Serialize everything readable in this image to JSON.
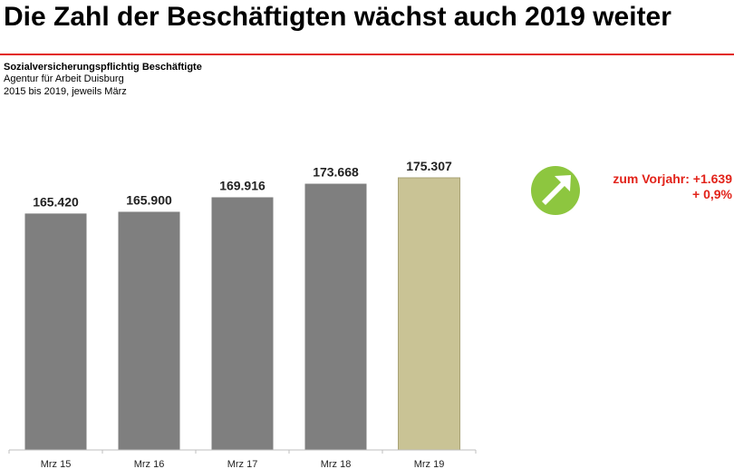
{
  "header": {
    "title": "Die Zahl der Beschäftigten wächst auch 2019 weiter",
    "subtitle": "Sozialversicherungspflichtig Beschäftigte",
    "source": "Agentur für Arbeit Duisburg",
    "period": "2015 bis 2019, jeweils März"
  },
  "annotation": {
    "line1": "zum Vorjahr: +1.639",
    "line2": "+ 0,9%",
    "icon": "arrow-up-right-icon",
    "icon_color": "#8dc63f",
    "text_color": "#e2231a"
  },
  "colors": {
    "bar": "#7f7f7f",
    "bar_highlight": "#c9c395",
    "accent_rule": "#e2231a"
  },
  "chart_data": {
    "type": "bar",
    "categories": [
      "Mrz 15",
      "Mrz 16",
      "Mrz 17",
      "Mrz 18",
      "Mrz 19"
    ],
    "values": [
      165420,
      165900,
      169916,
      173668,
      175307
    ],
    "value_labels": [
      "165.420",
      "165.900",
      "169.916",
      "173.668",
      "175.307"
    ],
    "highlight_index": 4,
    "title": "",
    "xlabel": "",
    "ylabel": "",
    "ylim": [
      0,
      200000
    ],
    "grid": false,
    "legend": "none"
  }
}
